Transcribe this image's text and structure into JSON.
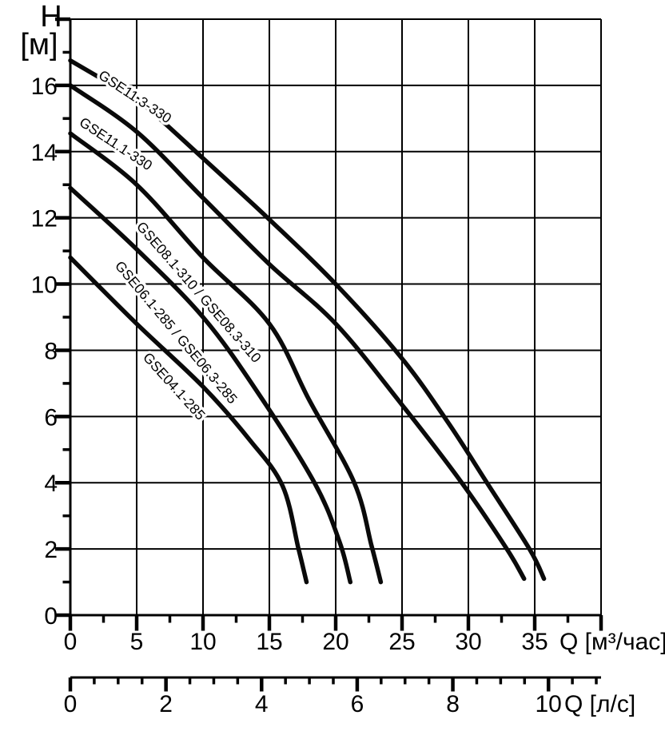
{
  "chart_data": {
    "type": "line",
    "title": "",
    "description": "Pump head-flow performance curves",
    "x_axis": {
      "label": "Q [м³/час]",
      "range": [
        0,
        40
      ],
      "major_step": 5,
      "minor_step": 2.5,
      "tick_values": [
        0,
        5,
        10,
        15,
        20,
        25,
        30,
        35
      ],
      "tick_labels": [
        "0",
        "5",
        "10",
        "15",
        "20",
        "25",
        "30",
        "35"
      ],
      "grid": true
    },
    "x_axis_secondary": {
      "label": "Q [л/с]",
      "range": [
        0,
        11.1
      ],
      "major_step": 2,
      "minor_step": 0.5,
      "tick_values": [
        0,
        2,
        4,
        6,
        8,
        10
      ],
      "tick_labels": [
        "0",
        "2",
        "4",
        "6",
        "8",
        "10"
      ],
      "grid": false
    },
    "y_axis": {
      "label": "H [м]",
      "label_lines": [
        "H",
        "[м]"
      ],
      "range": [
        0,
        18
      ],
      "major_step": 2,
      "minor_step": 1,
      "tick_values": [
        0,
        2,
        4,
        6,
        8,
        10,
        12,
        14,
        16
      ],
      "tick_labels": [
        "0",
        "2",
        "4",
        "6",
        "8",
        "10",
        "12",
        "14",
        "16"
      ],
      "grid": true
    },
    "style": {
      "line_color": "#0a0a0a",
      "grid_color": "#000000",
      "background": "#ffffff",
      "legend": "labels-along-curves"
    },
    "series": [
      {
        "name": "GSE11.3-330",
        "points": [
          [
            0,
            16.75
          ],
          [
            3,
            16.05
          ],
          [
            5,
            15.6
          ],
          [
            10,
            13.8
          ],
          [
            15,
            11.95
          ],
          [
            20,
            10.0
          ],
          [
            25,
            7.75
          ],
          [
            28.5,
            5.8
          ],
          [
            31.4,
            4.0
          ],
          [
            34.6,
            2.0
          ],
          [
            35.7,
            1.1
          ]
        ],
        "label": {
          "x": 122,
          "y": 97,
          "angle": 33.5
        }
      },
      {
        "name": "GSE11.1-330",
        "points": [
          [
            0,
            16.0
          ],
          [
            5,
            14.6
          ],
          [
            10,
            12.6
          ],
          [
            15,
            10.6
          ],
          [
            20,
            8.8
          ],
          [
            25,
            6.35
          ],
          [
            29.5,
            4.0
          ],
          [
            32.9,
            2.0
          ],
          [
            34.2,
            1.1
          ]
        ],
        "label": {
          "x": 98,
          "y": 156,
          "angle": 33.5
        }
      },
      {
        "name": "GSE08.1-310 / GSE08.3-310",
        "points": [
          [
            0,
            14.55
          ],
          [
            5,
            13.0
          ],
          [
            10,
            10.8
          ],
          [
            15,
            8.8
          ],
          [
            18,
            6.5
          ],
          [
            21.4,
            4.0
          ],
          [
            22.7,
            2.1
          ],
          [
            23.4,
            1.0
          ]
        ],
        "label": {
          "x": 170,
          "y": 284,
          "angle": 49
        }
      },
      {
        "name": "GSE06.1-285 / GSE06.3-285",
        "points": [
          [
            0,
            12.9
          ],
          [
            5,
            11.05
          ],
          [
            10,
            9.0
          ],
          [
            14,
            6.8
          ],
          [
            18.4,
            4.0
          ],
          [
            20.3,
            2.2
          ],
          [
            21.1,
            1.0
          ]
        ],
        "label": {
          "x": 143,
          "y": 333,
          "angle": 50
        }
      },
      {
        "name": "GSE04.1-285",
        "points": [
          [
            0,
            10.8
          ],
          [
            5,
            8.8
          ],
          [
            10,
            6.9
          ],
          [
            13.5,
            5.3
          ],
          [
            16,
            3.9
          ],
          [
            17.2,
            2.0
          ],
          [
            17.8,
            1.0
          ]
        ],
        "label": {
          "x": 178,
          "y": 448,
          "angle": 48
        }
      }
    ]
  }
}
